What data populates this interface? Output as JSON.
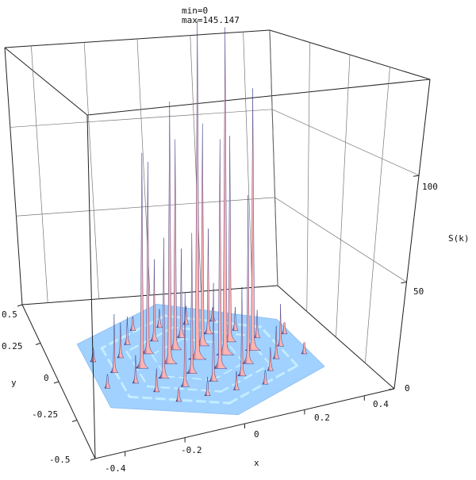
{
  "chart_data": {
    "type": "surface3d",
    "header": {
      "min_text": "min=0",
      "max_text": "max=145.147"
    },
    "zlabel": "S(k)",
    "xlabel": "x",
    "ylabel": "y",
    "zlim": [
      0,
      145.147
    ],
    "z_ticks": [
      0,
      50,
      100
    ],
    "x_ticks": [
      -0.4,
      -0.2,
      0,
      0.2,
      0.4
    ],
    "y_ticks": [
      -0.5,
      -0.25,
      0,
      0.25,
      0.5
    ],
    "x_tick_labels": [
      "-0.4",
      "-0.2",
      "0",
      "0.2",
      "0.4"
    ],
    "y_tick_labels": [
      "-0.5",
      "-0.25",
      "0",
      "0.25",
      "0.5"
    ],
    "z_tick_labels": [
      "0",
      "50",
      "100"
    ],
    "colors": {
      "surface_base": "#9ccfff",
      "surface_edge": "#8fbfef",
      "ripple": "#c9f3ff",
      "peak_light": "#ffb4b0",
      "peak_dark": "#1c1f78",
      "box_line": "#222222",
      "grid_line": "#777777"
    },
    "peaks": [
      {
        "x": 0.0,
        "y": 0.0,
        "z": 145
      },
      {
        "x": 0.1,
        "y": 0.0,
        "z": 140
      },
      {
        "x": -0.1,
        "y": 0.0,
        "z": 112
      },
      {
        "x": 0.2,
        "y": 0.0,
        "z": 112
      },
      {
        "x": -0.2,
        "y": 0.0,
        "z": 92
      },
      {
        "x": 0.05,
        "y": 0.09,
        "z": 95
      },
      {
        "x": -0.05,
        "y": 0.09,
        "z": 90
      },
      {
        "x": 0.15,
        "y": 0.09,
        "z": 88
      },
      {
        "x": -0.15,
        "y": 0.09,
        "z": 82
      },
      {
        "x": 0.05,
        "y": -0.09,
        "z": 98
      },
      {
        "x": -0.05,
        "y": -0.09,
        "z": 60
      },
      {
        "x": 0.15,
        "y": -0.09,
        "z": 72
      },
      {
        "x": -0.15,
        "y": -0.09,
        "z": 60
      },
      {
        "x": 0.1,
        "y": 0.17,
        "z": 45
      },
      {
        "x": 0.0,
        "y": 0.17,
        "z": 38
      },
      {
        "x": -0.1,
        "y": 0.17,
        "z": 35
      },
      {
        "x": 0.1,
        "y": -0.17,
        "z": 38
      },
      {
        "x": 0.0,
        "y": -0.17,
        "z": 42
      },
      {
        "x": -0.1,
        "y": -0.17,
        "z": 40
      },
      {
        "x": 0.3,
        "y": 0.0,
        "z": 18
      },
      {
        "x": -0.3,
        "y": 0.0,
        "z": 25
      },
      {
        "x": 0.25,
        "y": 0.09,
        "z": 12
      },
      {
        "x": -0.25,
        "y": 0.09,
        "z": 15
      },
      {
        "x": 0.25,
        "y": -0.09,
        "z": 14
      },
      {
        "x": -0.25,
        "y": -0.09,
        "z": 12
      },
      {
        "x": 0.2,
        "y": 0.17,
        "z": 10
      },
      {
        "x": -0.2,
        "y": 0.17,
        "z": 12
      },
      {
        "x": 0.2,
        "y": -0.17,
        "z": 10
      },
      {
        "x": -0.2,
        "y": -0.17,
        "z": 10
      },
      {
        "x": 0.15,
        "y": 0.26,
        "z": 6
      },
      {
        "x": 0.05,
        "y": 0.26,
        "z": 8
      },
      {
        "x": -0.05,
        "y": 0.26,
        "z": 8
      },
      {
        "x": -0.15,
        "y": 0.26,
        "z": 6
      },
      {
        "x": 0.15,
        "y": -0.26,
        "z": 6
      },
      {
        "x": 0.05,
        "y": -0.26,
        "z": 8
      },
      {
        "x": -0.05,
        "y": -0.26,
        "z": 8
      },
      {
        "x": -0.15,
        "y": -0.26,
        "z": 6
      },
      {
        "x": 0.35,
        "y": 0.09,
        "z": 5
      },
      {
        "x": -0.35,
        "y": 0.09,
        "z": 6
      },
      {
        "x": 0.35,
        "y": -0.09,
        "z": 5
      },
      {
        "x": -0.35,
        "y": -0.09,
        "z": 6
      }
    ]
  }
}
